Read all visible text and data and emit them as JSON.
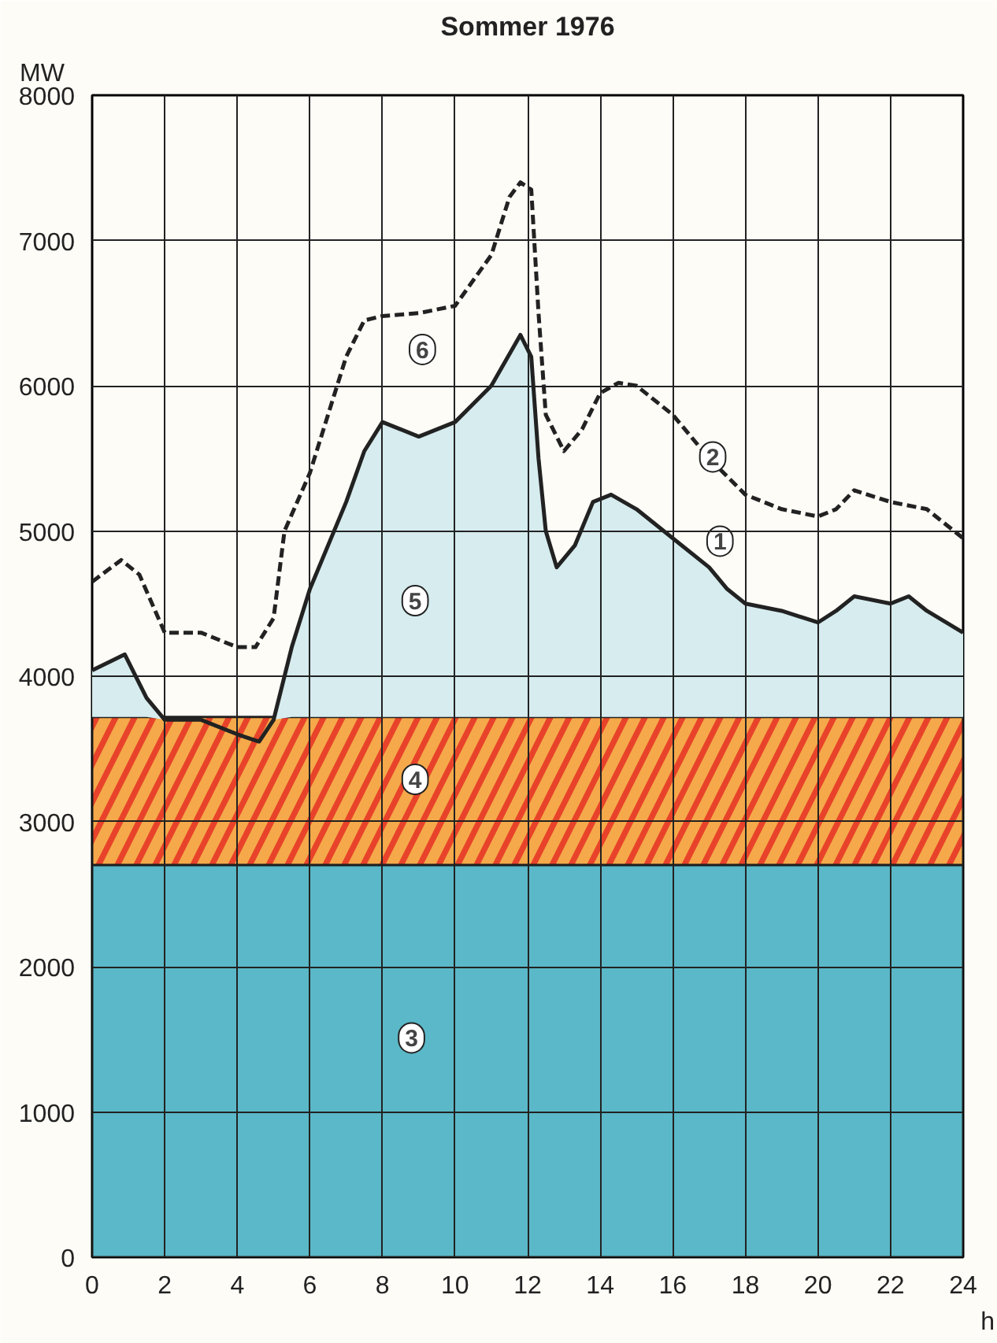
{
  "chart_data": {
    "type": "line",
    "title": "Sommer 1976",
    "ylabel": "MW",
    "xlabel": "h",
    "xlim": [
      0,
      24
    ],
    "ylim": [
      0,
      8000
    ],
    "xticks": [
      0,
      2,
      4,
      6,
      8,
      10,
      12,
      14,
      16,
      18,
      20,
      22,
      24
    ],
    "yticks": [
      0,
      1000,
      2000,
      3000,
      4000,
      5000,
      6000,
      7000,
      8000
    ],
    "grid": true,
    "bands": [
      {
        "axis": "y",
        "from": 0,
        "to": 2700,
        "color": "#5bb8c8"
      },
      {
        "axis": "y",
        "from": 2700,
        "to": 3720,
        "color": "#e8432a"
      }
    ],
    "series": [
      {
        "type": "area",
        "color": "#222222",
        "line_style": "solid",
        "x": [
          0,
          0.9,
          1.5,
          2,
          3,
          4,
          4.6,
          5,
          5.5,
          6,
          7,
          7.5,
          8,
          8.5,
          9,
          10,
          11,
          11.8,
          12.1,
          12.3,
          12.5,
          12.8,
          13.3,
          13.8,
          14.3,
          15,
          16,
          17,
          17.5,
          18,
          19,
          20,
          20.5,
          21,
          22,
          22.5,
          23,
          24
        ],
        "values": [
          4040,
          4150,
          3850,
          3700,
          3700,
          3600,
          3550,
          3700,
          4200,
          4600,
          5200,
          5550,
          5750,
          5700,
          5650,
          5750,
          6000,
          6350,
          6200,
          5500,
          5000,
          4750,
          4900,
          5200,
          5250,
          5150,
          4950,
          4750,
          4600,
          4500,
          4450,
          4370,
          4450,
          4550,
          4500,
          4550,
          4450,
          4300
        ]
      },
      {
        "color": "#222222",
        "line_style": "dashed",
        "x": [
          0,
          0.8,
          1.3,
          2,
          3,
          4,
          4.5,
          5,
          5.3,
          6,
          7,
          7.5,
          8,
          9,
          10,
          11,
          11.5,
          11.8,
          12.1,
          12.3,
          12.5,
          13,
          13.5,
          14,
          14.5,
          15,
          16,
          17,
          18,
          19,
          20,
          20.5,
          21,
          22,
          23,
          24
        ],
        "values": [
          4650,
          4800,
          4700,
          4300,
          4300,
          4200,
          4200,
          4400,
          5000,
          5400,
          6200,
          6450,
          6480,
          6500,
          6550,
          6900,
          7300,
          7400,
          7350,
          6500,
          5800,
          5550,
          5700,
          5950,
          6020,
          6000,
          5800,
          5500,
          5250,
          5150,
          5100,
          5150,
          5280,
          5200,
          5150,
          4950
        ]
      }
    ],
    "annotations": [
      {
        "text": "1",
        "x": 17.3,
        "y": 4930
      },
      {
        "text": "2",
        "x": 17.1,
        "y": 5510
      },
      {
        "text": "3",
        "x": 8.8,
        "y": 1510
      },
      {
        "text": "4",
        "x": 8.9,
        "y": 3290
      },
      {
        "text": "5",
        "x": 8.9,
        "y": 4520
      },
      {
        "text": "6",
        "x": 9.1,
        "y": 6250
      }
    ]
  }
}
